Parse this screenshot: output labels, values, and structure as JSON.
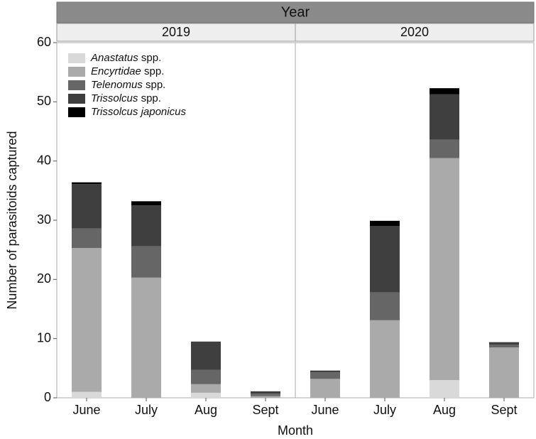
{
  "chart_data": {
    "type": "bar",
    "stacked": true,
    "title": "Year",
    "xlabel": "Month",
    "ylabel": "Number of parasitoids captured",
    "panels": [
      {
        "title": "2019"
      },
      {
        "title": "2020"
      }
    ],
    "categories": [
      "June",
      "July",
      "Aug",
      "Sept",
      "June",
      "July",
      "Aug",
      "Sept"
    ],
    "ylim": [
      0,
      60
    ],
    "yticks": [
      0,
      10,
      20,
      30,
      40,
      50,
      60
    ],
    "series": [
      {
        "name": "Anastatus spp.",
        "color": "#d9d9d9",
        "values": [
          1.0,
          0,
          0.85,
          0,
          0,
          0,
          3.0,
          0
        ]
      },
      {
        "name": "Encyrtidae spp.",
        "color": "#aaaaaa",
        "values": [
          24.3,
          20.3,
          1.45,
          0.3,
          3.2,
          13.1,
          37.5,
          8.5
        ]
      },
      {
        "name": "Telenomus spp.",
        "color": "#666666",
        "values": [
          3.3,
          5.3,
          2.4,
          0.4,
          1.1,
          4.7,
          3.1,
          0.5
        ]
      },
      {
        "name": "Trissolcus spp.",
        "color": "#3f3f3f",
        "values": [
          7.5,
          6.9,
          4.8,
          0.4,
          0.3,
          11.2,
          7.7,
          0.4
        ]
      },
      {
        "name": "Trissolcus japonicus",
        "color": "#000000",
        "values": [
          0.3,
          0.7,
          0,
          0,
          0,
          0.9,
          1.0,
          0
        ]
      }
    ]
  }
}
